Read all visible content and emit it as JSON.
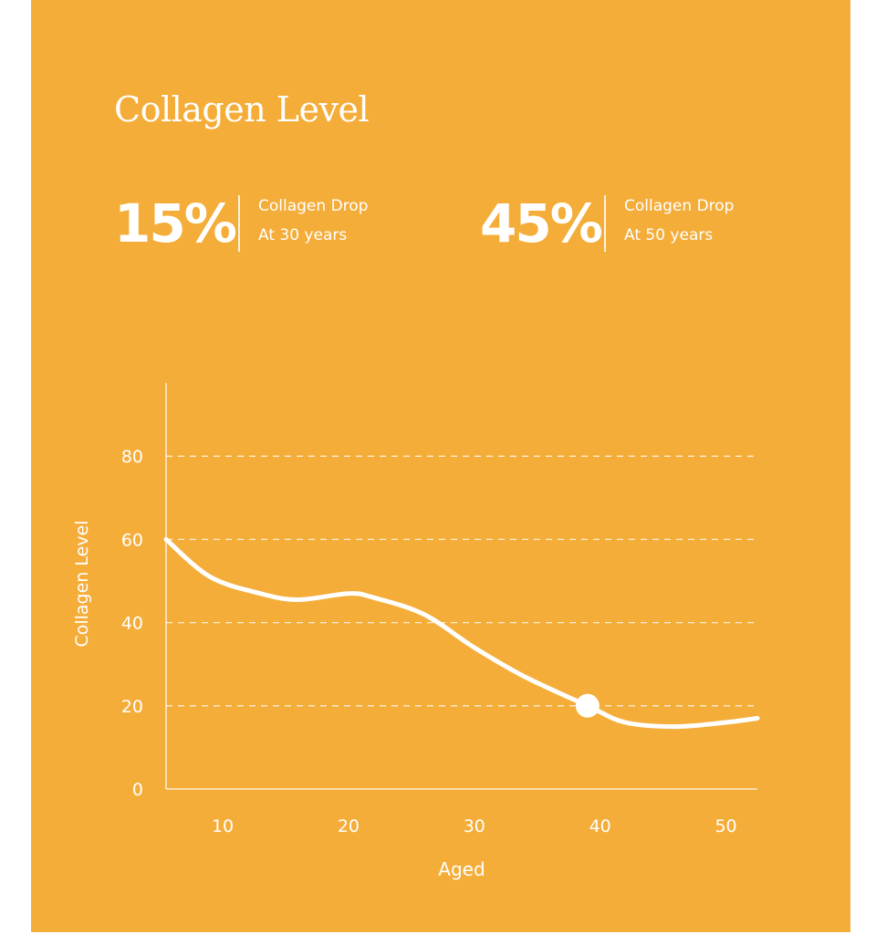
{
  "title": "Collagen Level",
  "stats": [
    {
      "value": "15%",
      "line1": "Collagen Drop",
      "line2": "At 30 years"
    },
    {
      "value": "45%",
      "line1": "Collagen Drop",
      "line2": "At 50 years"
    }
  ],
  "colors": {
    "background": "#F5AD3A",
    "foreground": "#FFFFFF"
  },
  "chart_data": {
    "type": "line",
    "xlabel": "Aged",
    "ylabel": "Collagen Level",
    "xlim": [
      5.5,
      52.5
    ],
    "ylim": [
      0,
      95
    ],
    "x_ticks": [
      10,
      20,
      30,
      40,
      50
    ],
    "y_ticks": [
      0,
      20,
      40,
      60,
      80
    ],
    "grid": "horizontal dashed",
    "series": [
      {
        "x": [
          5.5,
          9,
          13,
          16,
          20,
          22,
          26,
          30,
          34,
          39,
          42,
          46,
          50,
          52.5
        ],
        "y": [
          60,
          51,
          47,
          45.5,
          47,
          46,
          42,
          34,
          27,
          20,
          16,
          15,
          16,
          17
        ]
      }
    ],
    "highlight_point": {
      "x": 39,
      "y": 20
    }
  }
}
